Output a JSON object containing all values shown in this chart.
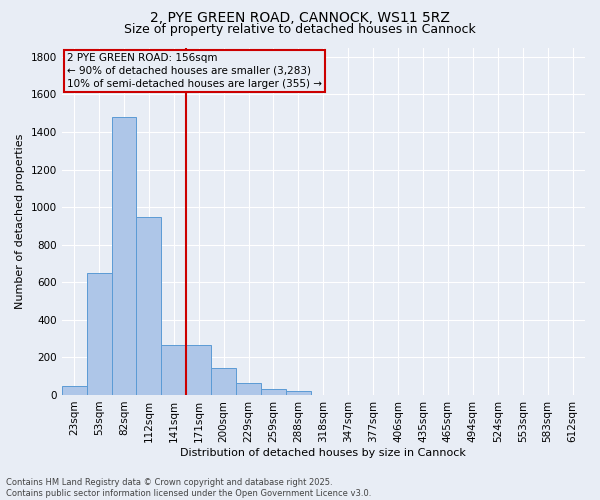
{
  "title_line1": "2, PYE GREEN ROAD, CANNOCK, WS11 5RZ",
  "title_line2": "Size of property relative to detached houses in Cannock",
  "xlabel": "Distribution of detached houses by size in Cannock",
  "ylabel": "Number of detached properties",
  "categories": [
    "23sqm",
    "53sqm",
    "82sqm",
    "112sqm",
    "141sqm",
    "171sqm",
    "200sqm",
    "229sqm",
    "259sqm",
    "288sqm",
    "318sqm",
    "347sqm",
    "377sqm",
    "406sqm",
    "435sqm",
    "465sqm",
    "494sqm",
    "524sqm",
    "553sqm",
    "583sqm",
    "612sqm"
  ],
  "values": [
    50,
    650,
    1480,
    950,
    265,
    265,
    145,
    65,
    30,
    20,
    0,
    0,
    0,
    0,
    0,
    0,
    0,
    0,
    0,
    0,
    0
  ],
  "bar_color": "#aec6e8",
  "bar_edge_color": "#5b9bd5",
  "vline_color": "#cc0000",
  "annotation_box_text": "2 PYE GREEN ROAD: 156sqm\n← 90% of detached houses are smaller (3,283)\n10% of semi-detached houses are larger (355) →",
  "annotation_box_color": "#cc0000",
  "ylim": [
    0,
    1850
  ],
  "yticks": [
    0,
    200,
    400,
    600,
    800,
    1000,
    1200,
    1400,
    1600,
    1800
  ],
  "background_color": "#e8edf5",
  "grid_color": "#ffffff",
  "footnote": "Contains HM Land Registry data © Crown copyright and database right 2025.\nContains public sector information licensed under the Open Government Licence v3.0.",
  "title_fontsize": 10,
  "subtitle_fontsize": 9,
  "xlabel_fontsize": 8,
  "ylabel_fontsize": 8,
  "tick_fontsize": 7.5,
  "annot_fontsize": 7.5,
  "footnote_fontsize": 6
}
